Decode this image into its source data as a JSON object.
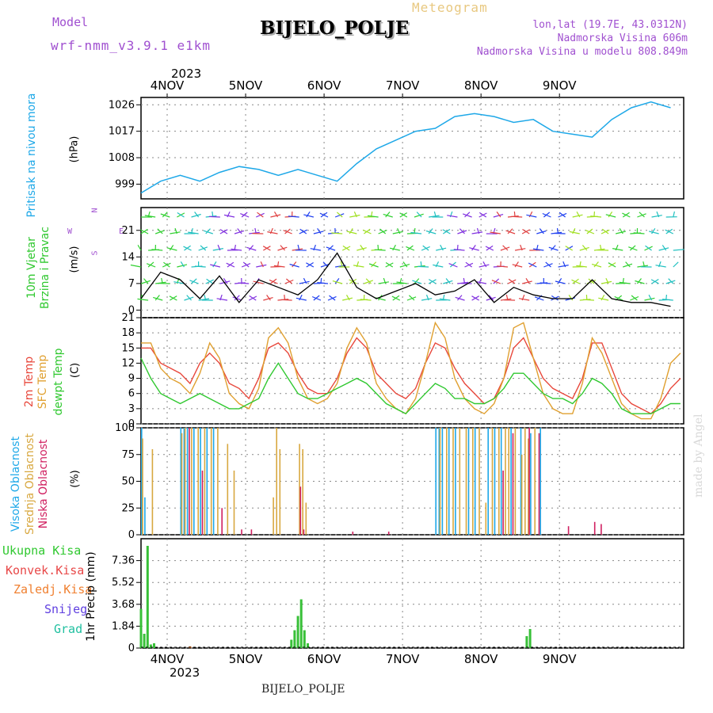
{
  "header": {
    "model_label": "Model",
    "model_name": "wrf-nmm_v3.9.1  e1km",
    "title": "BIJELO_POLJE",
    "subtitle": "Meteogram",
    "lonlat": "lon,lat (19.7E, 43.0312N)",
    "altitude": "Nadmorska Visina 606m",
    "model_altitude": "Nadmorska Visina u modelu 808.849m",
    "footer_station": "BIJELO_POLJE",
    "watermark": "made by Angel",
    "year": "2023"
  },
  "days": [
    "4NOV",
    "5NOV",
    "6NOV",
    "7NOV",
    "8NOV",
    "9NOV"
  ],
  "panel_labels": {
    "pressure": [
      "Pritisak na nivou mora",
      "(hPa)"
    ],
    "wind": [
      "10m Vjetar",
      "Brzina i Pravac",
      "(m/s)"
    ],
    "wind_compass": [
      "N",
      "W",
      "E",
      "S"
    ],
    "temp": [
      "2m Temp",
      "SFC Temp",
      "dewpt Temp",
      "(C)"
    ],
    "cloud": [
      "Visoka Oblacnost",
      "Srednja Oblacnost",
      "Niska Oblacnost",
      "(%)"
    ],
    "precip": [
      "Ukupna Kisa",
      "Konvek.Kisa",
      "Zaledj.Kisa",
      "Snijeg",
      "Grad",
      "1hr Precip (mm)"
    ]
  },
  "colors": {
    "pressure": "#1ea8e8",
    "temp2m": "#e8483c",
    "sfc": "#e0a030",
    "dew": "#30c830",
    "high_cloud": "#1ea8e8",
    "mid_cloud": "#d8a840",
    "low_cloud": "#d02060",
    "rain": "#38c038",
    "conv": "#e84848",
    "freezing": "#f08030",
    "snow": "#6040e0",
    "hail": "#20c0a0",
    "label_purple": "#a050d0"
  },
  "chart_data": [
    {
      "type": "line",
      "panel": "pressure",
      "ylabel": "(hPa)",
      "yticks": [
        999,
        1008,
        1017,
        1026
      ],
      "ylim": [
        994,
        1028.5
      ],
      "x": [
        0,
        6,
        12,
        18,
        24,
        30,
        36,
        42,
        48,
        54,
        60,
        66,
        72,
        78,
        84,
        90,
        96,
        102,
        108,
        114,
        120,
        126,
        132,
        138,
        144,
        150,
        156,
        162
      ],
      "values": [
        996,
        1000,
        1002,
        1000,
        1003,
        1005,
        1004,
        1002,
        1004,
        1002,
        1000,
        1006,
        1011,
        1014,
        1017,
        1018,
        1022,
        1023,
        1022,
        1020,
        1021,
        1017,
        1016,
        1015,
        1021,
        1025,
        1027,
        1025
      ],
      "series": [
        {
          "name": "Pritisak na nivou mora"
        }
      ]
    },
    {
      "type": "line",
      "panel": "wind_speed",
      "ylabel": "(m/s)",
      "yticks": [
        0,
        7,
        14,
        21
      ],
      "ylim": [
        -2,
        27
      ],
      "x": [
        0,
        6,
        12,
        18,
        24,
        30,
        36,
        42,
        48,
        54,
        60,
        66,
        72,
        78,
        84,
        90,
        96,
        102,
        108,
        114,
        120,
        126,
        132,
        138,
        144,
        150,
        156,
        162
      ],
      "values": [
        3,
        10,
        8,
        3,
        9,
        2,
        8,
        6,
        4,
        8,
        15,
        6,
        3,
        5,
        7,
        4,
        5,
        8,
        2,
        6,
        4,
        3,
        3,
        8,
        3,
        2,
        2,
        1
      ],
      "series": [
        {
          "name": "10m Vjetar"
        }
      ]
    },
    {
      "type": "line",
      "panel": "temperature",
      "ylabel": "(C)",
      "yticks": [
        0,
        3,
        6,
        9,
        12,
        15,
        18,
        21
      ],
      "ylim": [
        0,
        21
      ],
      "x": [
        0,
        3,
        6,
        9,
        12,
        15,
        18,
        21,
        24,
        27,
        30,
        33,
        36,
        39,
        42,
        45,
        48,
        51,
        54,
        57,
        60,
        63,
        66,
        69,
        72,
        75,
        78,
        81,
        84,
        87,
        90,
        93,
        96,
        99,
        102,
        105,
        108,
        111,
        114,
        117,
        120,
        123,
        126,
        129,
        132,
        135,
        138,
        141,
        144,
        147,
        150,
        153,
        156,
        159,
        162,
        165
      ],
      "series": [
        {
          "name": "2m Temp",
          "values": [
            15,
            15,
            12,
            11,
            10,
            8,
            12,
            14,
            12,
            8,
            7,
            5,
            9,
            15,
            16,
            14,
            10,
            7,
            6,
            6,
            9,
            14,
            17,
            15,
            10,
            8,
            6,
            5,
            7,
            12,
            16,
            15,
            11,
            8,
            6,
            4,
            5,
            9,
            15,
            17,
            13,
            9,
            7,
            6,
            5,
            9,
            16,
            16,
            11,
            6,
            4,
            3,
            2,
            4,
            7,
            9
          ]
        },
        {
          "name": "SFC Temp",
          "values": [
            16,
            16,
            11,
            9,
            8,
            6,
            10,
            16,
            13,
            6,
            4,
            3,
            7,
            17,
            19,
            16,
            9,
            5,
            4,
            5,
            8,
            15,
            19,
            16,
            8,
            5,
            3,
            2,
            5,
            12,
            20,
            17,
            9,
            5,
            3,
            2,
            4,
            9,
            19,
            20,
            13,
            6,
            3,
            2,
            2,
            8,
            17,
            14,
            9,
            4,
            2,
            1,
            1,
            5,
            12,
            14
          ]
        },
        {
          "name": "dewpt Temp",
          "values": [
            13,
            9,
            6,
            5,
            4,
            5,
            6,
            5,
            4,
            3,
            3,
            4,
            5,
            9,
            12,
            9,
            6,
            5,
            5,
            6,
            7,
            8,
            9,
            8,
            6,
            4,
            3,
            2,
            4,
            6,
            8,
            7,
            5,
            5,
            4,
            4,
            5,
            7,
            10,
            10,
            8,
            6,
            5,
            5,
            4,
            6,
            9,
            8,
            6,
            3,
            2,
            2,
            2,
            3,
            4,
            4
          ]
        }
      ]
    },
    {
      "type": "bar",
      "panel": "cloud_cover",
      "ylabel": "(%)",
      "yticks": [
        0,
        25,
        50,
        75,
        100
      ],
      "ylim": [
        0,
        100
      ],
      "series": [
        {
          "name": "Visoka Oblacnost",
          "x": [
            0,
            1,
            12,
            13,
            14,
            16,
            18,
            20,
            22,
            90,
            91,
            92,
            94,
            96,
            100,
            102,
            106,
            108,
            110,
            113,
            116,
            119,
            122
          ],
          "values": [
            100,
            35,
            100,
            100,
            100,
            100,
            100,
            100,
            100,
            100,
            100,
            100,
            100,
            100,
            100,
            100,
            100,
            100,
            100,
            100,
            100,
            95,
            100
          ]
        },
        {
          "name": "Srednja Oblacnost",
          "x": [
            0,
            3,
            12,
            13,
            15,
            17,
            19,
            21,
            23,
            26,
            28,
            40,
            41,
            42,
            48,
            49,
            50,
            91,
            93,
            95,
            97,
            99,
            101,
            103,
            105,
            107,
            109,
            111,
            112,
            114,
            116,
            117,
            118,
            120
          ],
          "values": [
            90,
            80,
            95,
            100,
            100,
            100,
            100,
            100,
            100,
            85,
            60,
            35,
            100,
            80,
            85,
            80,
            30,
            100,
            100,
            100,
            100,
            100,
            100,
            100,
            30,
            100,
            100,
            100,
            100,
            100,
            75,
            100,
            90,
            100
          ]
        },
        {
          "name": "Niska Oblacnost",
          "x": [
            14,
            18,
            24,
            30,
            33,
            48,
            49,
            64,
            75,
            110,
            113,
            118,
            121,
            130,
            138,
            140
          ],
          "values": [
            100,
            60,
            25,
            5,
            5,
            45,
            5,
            3,
            3,
            60,
            95,
            100,
            95,
            8,
            12,
            10
          ]
        }
      ]
    },
    {
      "type": "bar",
      "panel": "precipitation",
      "ylabel": "1hr Precip (mm)",
      "yticks": [
        0,
        1.84,
        3.68,
        5.52,
        7.36
      ],
      "ylim": [
        0,
        9.2
      ],
      "series": [
        {
          "name": "Ukupna Kisa",
          "x": [
            0,
            1,
            2,
            3,
            4,
            46,
            47,
            48,
            49,
            50,
            51,
            118,
            119
          ],
          "values": [
            3.3,
            1.2,
            8.6,
            0.3,
            0.4,
            0.7,
            1.5,
            2.7,
            4.1,
            1.5,
            0.4,
            1.0,
            1.6
          ]
        },
        {
          "name": "Konvek.Kisa",
          "x": [],
          "values": []
        },
        {
          "name": "Zaledj.Kisa",
          "x": [
            15
          ],
          "values": [
            0.15
          ]
        },
        {
          "name": "Snijeg",
          "x": [],
          "values": []
        },
        {
          "name": "Grad",
          "x": [],
          "values": []
        }
      ]
    }
  ]
}
